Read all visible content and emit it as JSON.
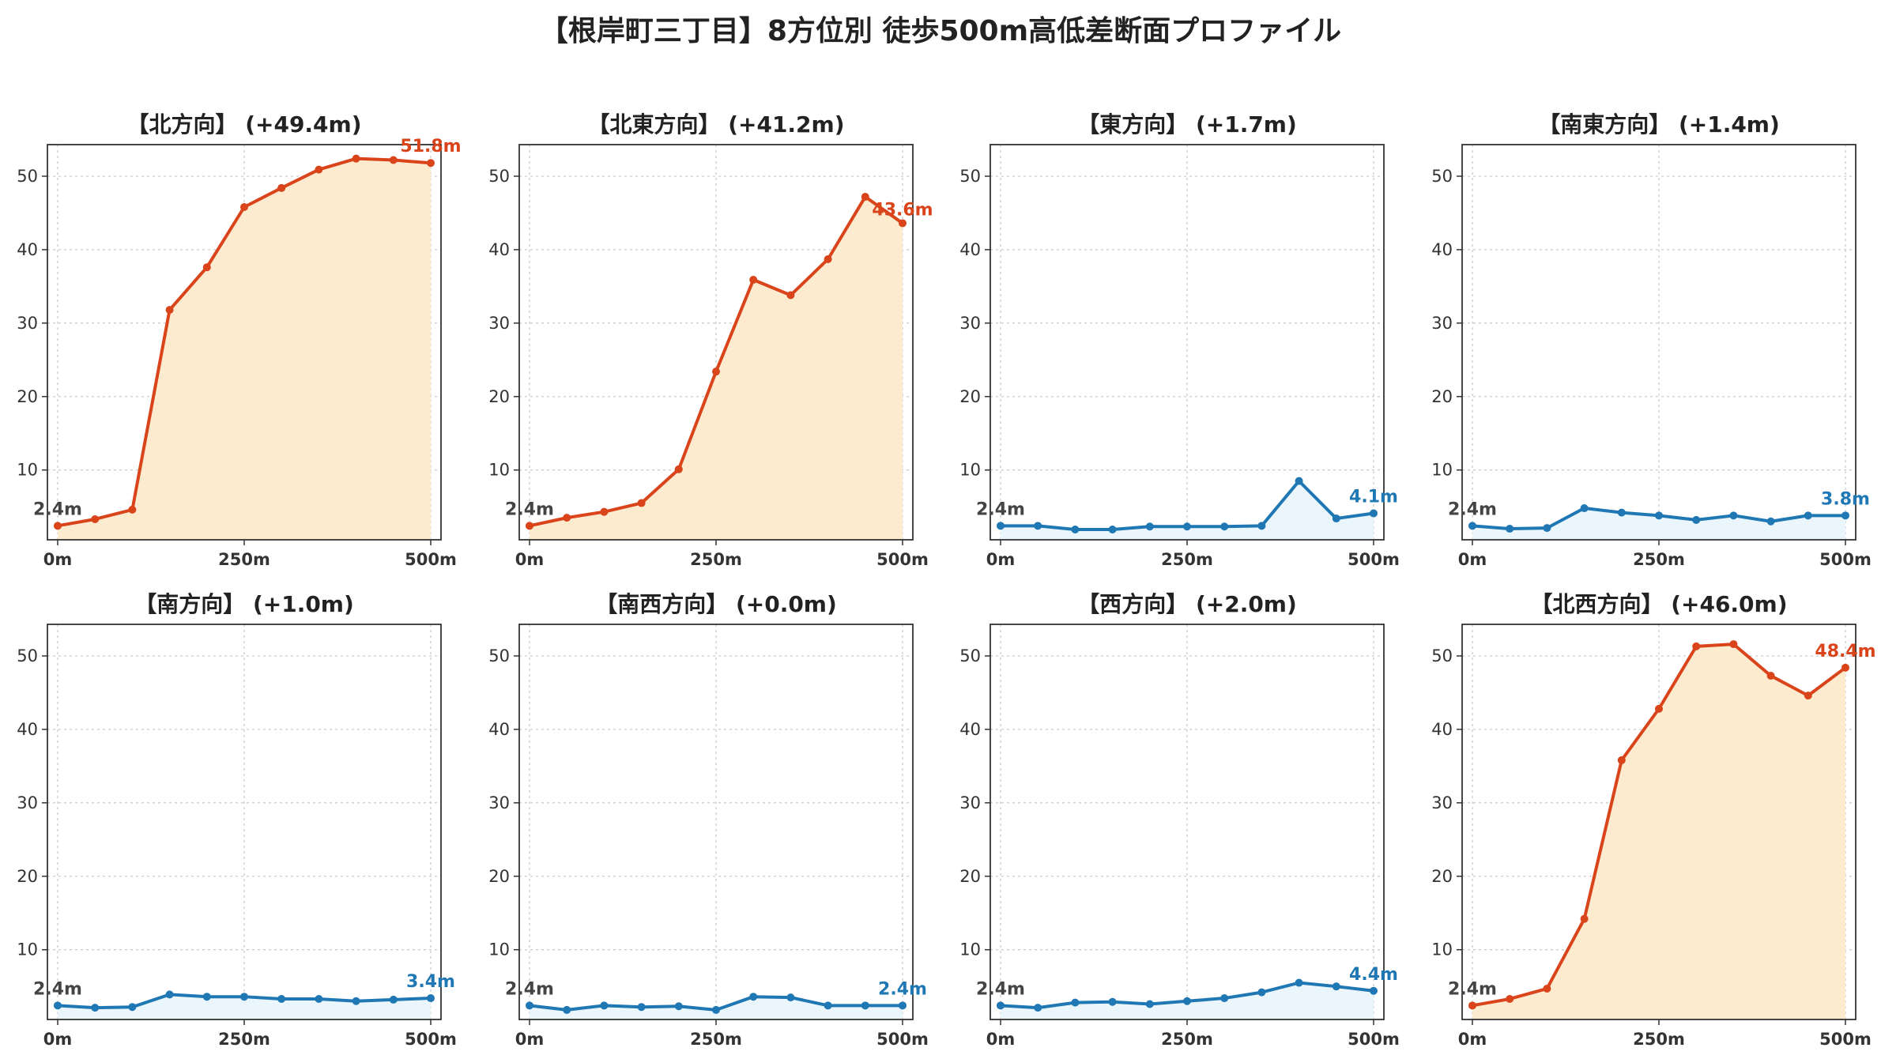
{
  "title": "【根岸町三丁目】8方位別 徒歩500m高低差断面プロファイル",
  "colors": {
    "up_line": "#D9441B",
    "up_fill": "#FDEBD0",
    "flat_line": "#1F77B4",
    "flat_fill": "#EAF6FB",
    "start_label": "#444444",
    "grid": "#cccccc",
    "axis": "#333333"
  },
  "chart_data": [
    {
      "type": "area",
      "title": "【北方向】 (+49.4m)",
      "style": "up",
      "x": [
        0,
        50,
        100,
        150,
        200,
        250,
        300,
        350,
        400,
        450,
        500
      ],
      "y": [
        2.4,
        3.3,
        4.6,
        31.8,
        37.6,
        45.8,
        48.4,
        50.9,
        52.4,
        52.2,
        51.8
      ],
      "start_label": "2.4m",
      "end_label": "51.8m",
      "x_ticks": [
        "0m",
        "250m",
        "500m"
      ],
      "y_ticks": [
        10,
        20,
        30,
        40,
        50
      ],
      "xlim": [
        0,
        500
      ],
      "ylim": [
        0.5,
        54.3
      ],
      "grid": true
    },
    {
      "type": "area",
      "title": "【北東方向】 (+41.2m)",
      "style": "up",
      "x": [
        0,
        50,
        100,
        150,
        200,
        250,
        300,
        350,
        400,
        450,
        500
      ],
      "y": [
        2.4,
        3.5,
        4.3,
        5.5,
        10.1,
        23.4,
        35.9,
        33.8,
        38.7,
        47.2,
        43.6
      ],
      "start_label": "2.4m",
      "end_label": "43.6m",
      "x_ticks": [
        "0m",
        "250m",
        "500m"
      ],
      "y_ticks": [
        10,
        20,
        30,
        40,
        50
      ],
      "xlim": [
        0,
        500
      ],
      "ylim": [
        0.5,
        54.3
      ],
      "grid": true
    },
    {
      "type": "area",
      "title": "【東方向】 (+1.7m)",
      "style": "flat",
      "x": [
        0,
        50,
        100,
        150,
        200,
        250,
        300,
        350,
        400,
        450,
        500
      ],
      "y": [
        2.4,
        2.4,
        1.9,
        1.9,
        2.3,
        2.3,
        2.3,
        2.4,
        8.5,
        3.4,
        4.1
      ],
      "start_label": "2.4m",
      "end_label": "4.1m",
      "x_ticks": [
        "0m",
        "250m",
        "500m"
      ],
      "y_ticks": [
        10,
        20,
        30,
        40,
        50
      ],
      "xlim": [
        0,
        500
      ],
      "ylim": [
        0.5,
        54.3
      ],
      "grid": true
    },
    {
      "type": "area",
      "title": "【南東方向】 (+1.4m)",
      "style": "flat",
      "x": [
        0,
        50,
        100,
        150,
        200,
        250,
        300,
        350,
        400,
        450,
        500
      ],
      "y": [
        2.4,
        2.0,
        2.1,
        4.8,
        4.2,
        3.8,
        3.2,
        3.8,
        3.0,
        3.8,
        3.8
      ],
      "start_label": "2.4m",
      "end_label": "3.8m",
      "x_ticks": [
        "0m",
        "250m",
        "500m"
      ],
      "y_ticks": [
        10,
        20,
        30,
        40,
        50
      ],
      "xlim": [
        0,
        500
      ],
      "ylim": [
        0.5,
        54.3
      ],
      "grid": true
    },
    {
      "type": "area",
      "title": "【南方向】 (+1.0m)",
      "style": "flat",
      "x": [
        0,
        50,
        100,
        150,
        200,
        250,
        300,
        350,
        400,
        450,
        500
      ],
      "y": [
        2.4,
        2.1,
        2.2,
        3.9,
        3.6,
        3.6,
        3.3,
        3.3,
        3.0,
        3.2,
        3.4
      ],
      "start_label": "2.4m",
      "end_label": "3.4m",
      "x_ticks": [
        "0m",
        "250m",
        "500m"
      ],
      "y_ticks": [
        10,
        20,
        30,
        40,
        50
      ],
      "xlim": [
        0,
        500
      ],
      "ylim": [
        0.5,
        54.3
      ],
      "grid": true
    },
    {
      "type": "area",
      "title": "【南西方向】 (+0.0m)",
      "style": "flat",
      "x": [
        0,
        50,
        100,
        150,
        200,
        250,
        300,
        350,
        400,
        450,
        500
      ],
      "y": [
        2.4,
        1.8,
        2.4,
        2.2,
        2.3,
        1.8,
        3.6,
        3.5,
        2.4,
        2.4,
        2.4
      ],
      "start_label": "2.4m",
      "end_label": "2.4m",
      "x_ticks": [
        "0m",
        "250m",
        "500m"
      ],
      "y_ticks": [
        10,
        20,
        30,
        40,
        50
      ],
      "xlim": [
        0,
        500
      ],
      "ylim": [
        0.5,
        54.3
      ],
      "grid": true
    },
    {
      "type": "area",
      "title": "【西方向】 (+2.0m)",
      "style": "flat",
      "x": [
        0,
        50,
        100,
        150,
        200,
        250,
        300,
        350,
        400,
        450,
        500
      ],
      "y": [
        2.4,
        2.1,
        2.8,
        2.9,
        2.6,
        3.0,
        3.4,
        4.2,
        5.5,
        5.0,
        4.4
      ],
      "start_label": "2.4m",
      "end_label": "4.4m",
      "x_ticks": [
        "0m",
        "250m",
        "500m"
      ],
      "y_ticks": [
        10,
        20,
        30,
        40,
        50
      ],
      "xlim": [
        0,
        500
      ],
      "ylim": [
        0.5,
        54.3
      ],
      "grid": true
    },
    {
      "type": "area",
      "title": "【北西方向】 (+46.0m)",
      "style": "up",
      "x": [
        0,
        50,
        100,
        150,
        200,
        250,
        300,
        350,
        400,
        450,
        500
      ],
      "y": [
        2.4,
        3.3,
        4.7,
        14.2,
        35.8,
        42.8,
        51.3,
        51.6,
        47.3,
        44.6,
        48.4
      ],
      "start_label": "2.4m",
      "end_label": "48.4m",
      "x_ticks": [
        "0m",
        "250m",
        "500m"
      ],
      "y_ticks": [
        10,
        20,
        30,
        40,
        50
      ],
      "xlim": [
        0,
        500
      ],
      "ylim": [
        0.5,
        54.3
      ],
      "grid": true
    }
  ]
}
